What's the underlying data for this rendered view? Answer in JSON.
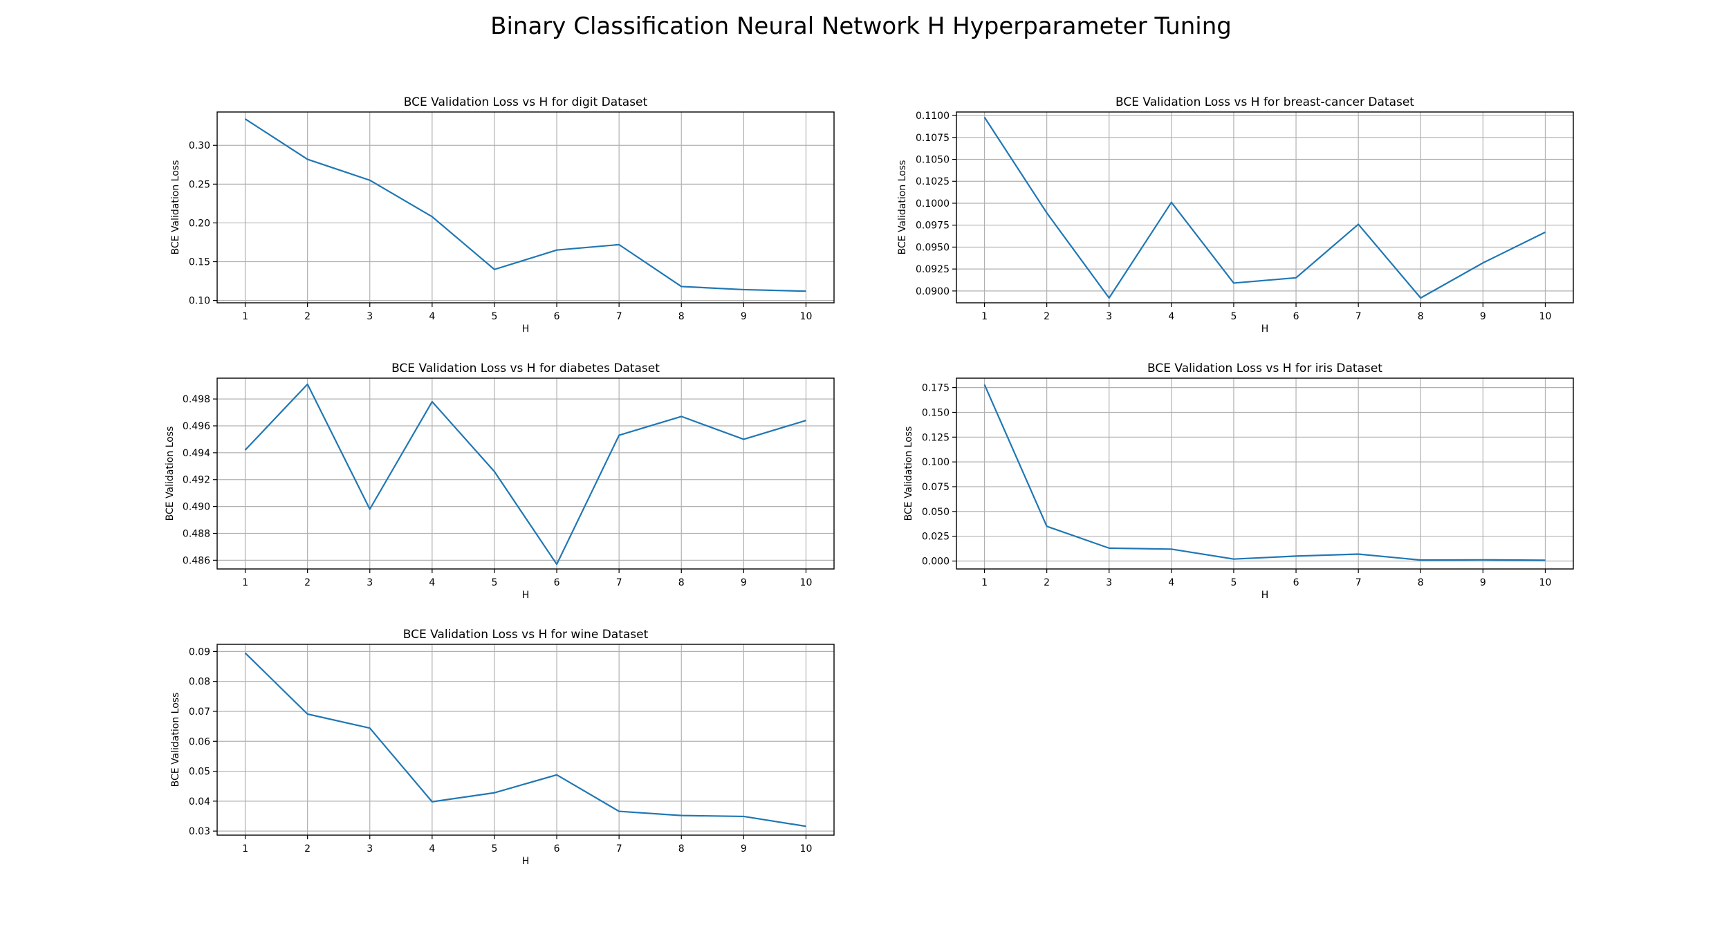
{
  "figure": {
    "title": "Binary Classification Neural Network H Hyperparameter Tuning"
  },
  "colors": {
    "line": "#1f77b4",
    "grid": "#b0b0b0",
    "axes": "#000000"
  },
  "chart_data": [
    {
      "type": "line",
      "title": "BCE Validation Loss vs H for digit Dataset",
      "xlabel": "H",
      "ylabel": "BCE Validation Loss",
      "grid": true,
      "x": [
        1,
        2,
        3,
        4,
        5,
        6,
        7,
        8,
        9,
        10
      ],
      "xticks": [
        "1",
        "2",
        "3",
        "4",
        "5",
        "6",
        "7",
        "8",
        "9",
        "10"
      ],
      "series": [
        {
          "values": [
            0.334,
            0.282,
            0.255,
            0.208,
            0.14,
            0.165,
            0.172,
            0.118,
            0.114,
            0.112
          ]
        }
      ],
      "ylim": [
        0.097,
        0.343
      ],
      "yticks": [
        0.1,
        0.15,
        0.2,
        0.25,
        0.3
      ],
      "ytick_labels": [
        "0.10",
        "0.15",
        "0.20",
        "0.25",
        "0.30"
      ]
    },
    {
      "type": "line",
      "title": "BCE Validation Loss vs H for breast-cancer Dataset",
      "xlabel": "H",
      "ylabel": "BCE Validation Loss",
      "grid": true,
      "x": [
        1,
        2,
        3,
        4,
        5,
        6,
        7,
        8,
        9,
        10
      ],
      "xticks": [
        "1",
        "2",
        "3",
        "4",
        "5",
        "6",
        "7",
        "8",
        "9",
        "10"
      ],
      "series": [
        {
          "values": [
            0.1098,
            0.0989,
            0.0892,
            0.1001,
            0.0909,
            0.0915,
            0.0976,
            0.0892,
            0.0932,
            0.0967
          ]
        }
      ],
      "ylim": [
        0.08865,
        0.1104
      ],
      "yticks": [
        0.09,
        0.0925,
        0.095,
        0.0975,
        0.1,
        0.1025,
        0.105,
        0.1075,
        0.11
      ],
      "ytick_labels": [
        "0.0900",
        "0.0925",
        "0.0950",
        "0.0975",
        "0.1000",
        "0.1025",
        "0.1050",
        "0.1075",
        "0.1100"
      ]
    },
    {
      "type": "line",
      "title": "BCE Validation Loss vs H for diabetes Dataset",
      "xlabel": "H",
      "ylabel": "BCE Validation Loss",
      "grid": true,
      "x": [
        1,
        2,
        3,
        4,
        5,
        6,
        7,
        8,
        9,
        10
      ],
      "xticks": [
        "1",
        "2",
        "3",
        "4",
        "5",
        "6",
        "7",
        "8",
        "9",
        "10"
      ],
      "series": [
        {
          "values": [
            0.4942,
            0.4991,
            0.4898,
            0.4978,
            0.4926,
            0.4857,
            0.4953,
            0.4967,
            0.495,
            0.4964
          ]
        }
      ],
      "ylim": [
        0.48535,
        0.49955
      ],
      "yticks": [
        0.486,
        0.488,
        0.49,
        0.492,
        0.494,
        0.496,
        0.498
      ],
      "ytick_labels": [
        "0.486",
        "0.488",
        "0.490",
        "0.492",
        "0.494",
        "0.496",
        "0.498"
      ]
    },
    {
      "type": "line",
      "title": "BCE Validation Loss vs H for iris Dataset",
      "xlabel": "H",
      "ylabel": "BCE Validation Loss",
      "grid": true,
      "x": [
        1,
        2,
        3,
        4,
        5,
        6,
        7,
        8,
        9,
        10
      ],
      "xticks": [
        "1",
        "2",
        "3",
        "4",
        "5",
        "6",
        "7",
        "8",
        "9",
        "10"
      ],
      "series": [
        {
          "values": [
            0.178,
            0.035,
            0.013,
            0.012,
            0.002,
            0.005,
            0.007,
            0.001,
            0.0012,
            0.0008
          ]
        }
      ],
      "ylim": [
        -0.008,
        0.1845
      ],
      "yticks": [
        0.0,
        0.025,
        0.05,
        0.075,
        0.1,
        0.125,
        0.15,
        0.175
      ],
      "ytick_labels": [
        "0.000",
        "0.025",
        "0.050",
        "0.075",
        "0.100",
        "0.125",
        "0.150",
        "0.175"
      ]
    },
    {
      "type": "line",
      "title": "BCE Validation Loss vs H for wine Dataset",
      "xlabel": "H",
      "ylabel": "BCE Validation Loss",
      "grid": true,
      "x": [
        1,
        2,
        3,
        4,
        5,
        6,
        7,
        8,
        9,
        10
      ],
      "xticks": [
        "1",
        "2",
        "3",
        "4",
        "5",
        "6",
        "7",
        "8",
        "9",
        "10"
      ],
      "series": [
        {
          "values": [
            0.0895,
            0.0691,
            0.0644,
            0.0398,
            0.0428,
            0.0488,
            0.0366,
            0.0352,
            0.0349,
            0.0316
          ]
        }
      ],
      "ylim": [
        0.02865,
        0.0924
      ],
      "yticks": [
        0.03,
        0.04,
        0.05,
        0.06,
        0.07,
        0.08,
        0.09
      ],
      "ytick_labels": [
        "0.03",
        "0.04",
        "0.05",
        "0.06",
        "0.07",
        "0.08",
        "0.09"
      ]
    }
  ]
}
